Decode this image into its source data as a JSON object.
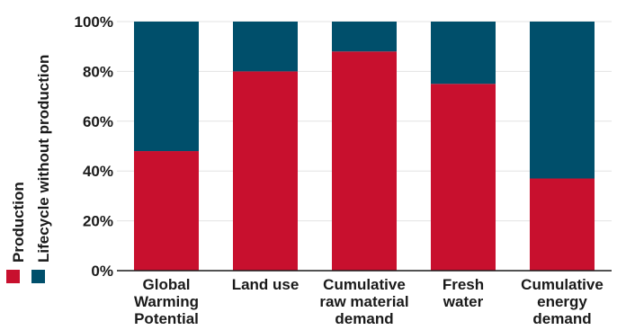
{
  "chart_data": {
    "type": "bar",
    "stacked": true,
    "categories": [
      [
        "Global",
        "Warming",
        "Potential"
      ],
      [
        "Land use"
      ],
      [
        "Cumulative",
        "raw material",
        "demand"
      ],
      [
        "Fresh",
        "water"
      ],
      [
        "Cumulative",
        "energy",
        "demand"
      ]
    ],
    "series": [
      {
        "name": "Production",
        "color": "#c8102e",
        "values": [
          48,
          80,
          88,
          75,
          37
        ]
      },
      {
        "name": "Lifecycle without production",
        "color": "#004f6b",
        "values": [
          52,
          20,
          12,
          25,
          63
        ]
      }
    ],
    "ylim": [
      0,
      100
    ],
    "yticks": [
      "0%",
      "20%",
      "40%",
      "60%",
      "80%",
      "100%"
    ],
    "grid": true,
    "legend": "left, vertical"
  }
}
